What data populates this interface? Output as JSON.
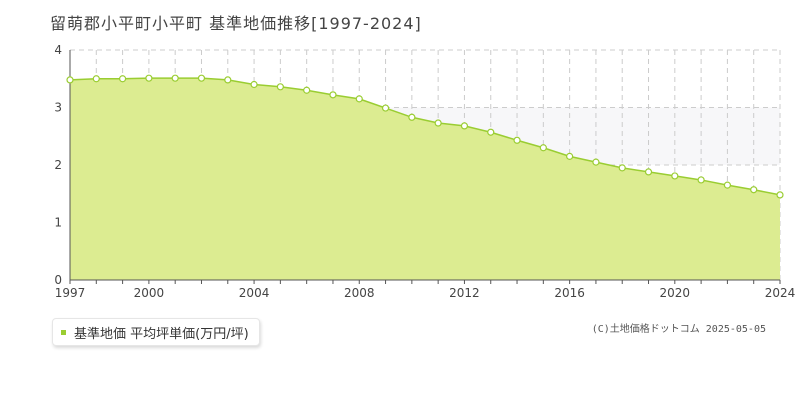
{
  "title": "留萌郡小平町小平町 基準地価推移[1997-2024]",
  "copyright": "(C)土地価格ドットコム 2025-05-05",
  "colors": {
    "fill": "#dcec91",
    "line": "#9acd32",
    "grid": "#cccccc",
    "band": "#f7f7f9"
  },
  "chart_data": {
    "type": "area",
    "title": "留萌郡小平町小平町 基準地価推移[1997-2024]",
    "xlabel": "",
    "ylabel": "",
    "xlim": [
      1997,
      2024
    ],
    "ylim": [
      0,
      4
    ],
    "x_ticks": [
      "1997",
      "2000",
      "2004",
      "2008",
      "2012",
      "2016",
      "2020",
      "2024"
    ],
    "y_ticks": [
      "0",
      "1",
      "2",
      "3",
      "4"
    ],
    "grid": true,
    "legend_position": "bottom-left",
    "series": [
      {
        "name": "基準地価 平均坪単価(万円/坪)",
        "x": [
          1997,
          1998,
          1999,
          2000,
          2001,
          2002,
          2003,
          2004,
          2005,
          2006,
          2007,
          2008,
          2009,
          2010,
          2011,
          2012,
          2013,
          2014,
          2015,
          2016,
          2017,
          2018,
          2019,
          2020,
          2021,
          2022,
          2023,
          2024
        ],
        "values": [
          3.48,
          3.5,
          3.5,
          3.51,
          3.51,
          3.51,
          3.48,
          3.4,
          3.36,
          3.3,
          3.22,
          3.15,
          2.99,
          2.83,
          2.73,
          2.68,
          2.57,
          2.43,
          2.3,
          2.15,
          2.05,
          1.95,
          1.88,
          1.81,
          1.74,
          1.65,
          1.57,
          1.48
        ]
      }
    ]
  }
}
